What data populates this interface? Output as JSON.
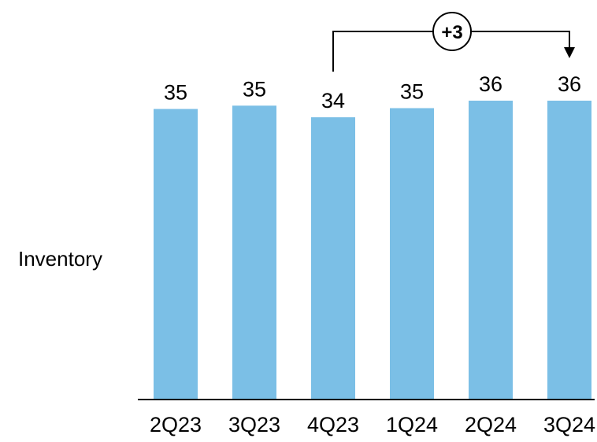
{
  "chart_data": {
    "type": "bar",
    "categories": [
      "2Q23",
      "3Q23",
      "4Q23",
      "1Q24",
      "2Q24",
      "3Q24"
    ],
    "values": [
      35,
      35.4,
      34,
      35.1,
      36,
      36
    ],
    "data_labels": [
      "35",
      "35",
      "34",
      "35",
      "36",
      "36"
    ],
    "series_label": "Inventory",
    "title": "",
    "xlabel": "",
    "ylabel": "",
    "ylim": [
      0,
      36
    ],
    "grid": false,
    "legend": "none",
    "annotation": {
      "text": "+3",
      "from_category": "4Q23",
      "to_category": "3Q24"
    },
    "colors": {
      "bar": "#7BBFE6",
      "axis": "#000000",
      "text": "#000000"
    }
  }
}
